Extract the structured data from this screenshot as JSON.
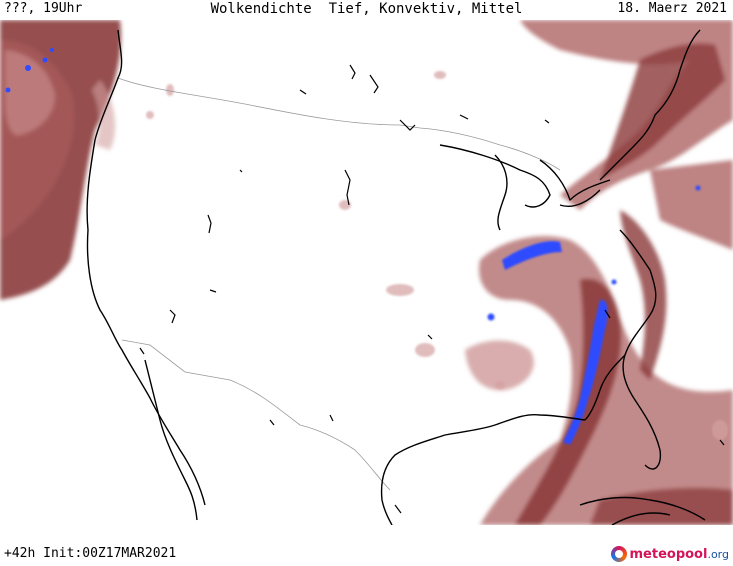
{
  "header": {
    "left": "???, 19Uhr",
    "center": "Wolkendichte  Tief, Konvektiv, Mittel",
    "right": "18. Maerz 2021"
  },
  "footer": {
    "left": "+42h Init:00Z17MAR2021",
    "logo_main": "meteopool",
    "logo_suffix": ".org"
  },
  "colors": {
    "cloud_dark": "#8b3a3a",
    "cloud_mid": "#a85a5a",
    "cloud_light": "#d4a0a0",
    "convective": "#2f4cff",
    "coast": "#000000",
    "border": "#9a9a9a"
  }
}
